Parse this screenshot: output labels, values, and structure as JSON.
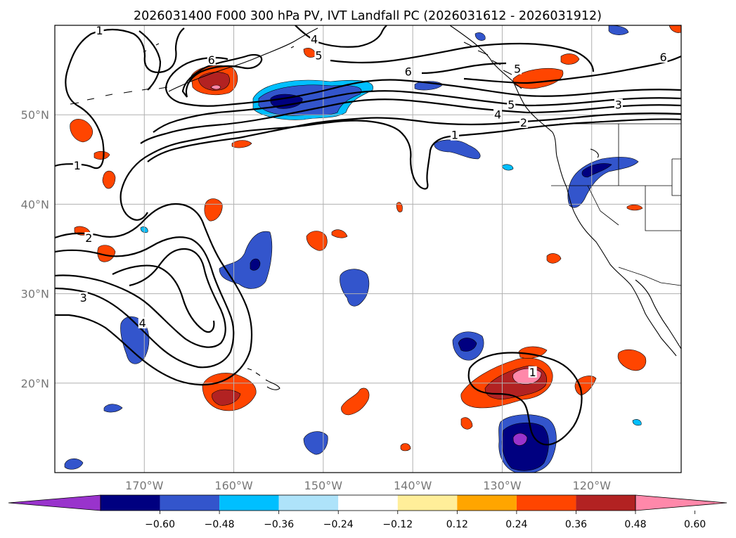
{
  "title": "2026031400 F000 300 hPa PV, IVT Landfall PC (2026031612 - 2026031912)",
  "map": {
    "lon_range": [
      -180,
      -110
    ],
    "lat_range": [
      10,
      60
    ],
    "lon_ticks": [
      {
        "lon": -170,
        "label": "170°W"
      },
      {
        "lon": -160,
        "label": "160°W"
      },
      {
        "lon": -150,
        "label": "150°W"
      },
      {
        "lon": -140,
        "label": "140°W"
      },
      {
        "lon": -130,
        "label": "130°W"
      },
      {
        "lon": -120,
        "label": "120°W"
      }
    ],
    "lat_ticks": [
      {
        "lat": 20,
        "label": "20°N"
      },
      {
        "lat": 30,
        "label": "30°N"
      },
      {
        "lat": 40,
        "label": "40°N"
      },
      {
        "lat": 50,
        "label": "50°N"
      }
    ],
    "grid": true,
    "contour_labels": [
      {
        "lon": -175,
        "lat": 59.3,
        "text": "1"
      },
      {
        "lon": -151,
        "lat": 58.3,
        "text": "4"
      },
      {
        "lon": -150.5,
        "lat": 56.5,
        "text": "5"
      },
      {
        "lon": -162.5,
        "lat": 56.0,
        "text": "6"
      },
      {
        "lon": -140.5,
        "lat": 54.7,
        "text": "6"
      },
      {
        "lon": -128.3,
        "lat": 55.0,
        "text": "5"
      },
      {
        "lon": -112,
        "lat": 56.3,
        "text": "6"
      },
      {
        "lon": -117,
        "lat": 51.0,
        "text": "3"
      },
      {
        "lon": -129,
        "lat": 51.0,
        "text": "5"
      },
      {
        "lon": -130.5,
        "lat": 49.9,
        "text": "4"
      },
      {
        "lon": -127.6,
        "lat": 49.0,
        "text": "2"
      },
      {
        "lon": -135.3,
        "lat": 47.6,
        "text": "1"
      },
      {
        "lon": -177.5,
        "lat": 44.2,
        "text": "1"
      },
      {
        "lon": -176.2,
        "lat": 36.1,
        "text": "2"
      },
      {
        "lon": -176.8,
        "lat": 29.4,
        "text": "3"
      },
      {
        "lon": -170.2,
        "lat": 26.6,
        "text": "4"
      },
      {
        "lon": -126.6,
        "lat": 21.1,
        "text": "1"
      }
    ]
  },
  "colorbar": {
    "levels": [
      -0.72,
      -0.6,
      -0.48,
      -0.36,
      -0.24,
      -0.12,
      0.12,
      0.24,
      0.36,
      0.48,
      0.6,
      0.72
    ],
    "colors": [
      "#9933cc",
      "#000080",
      "#3355cc",
      "#00bfff",
      "#aee3fa",
      "#ffffff",
      "#ffee99",
      "#ffa500",
      "#ff4500",
      "#b22222",
      "#ff88aa"
    ],
    "tick_labels": [
      "−0.60",
      "−0.48",
      "−0.36",
      "−0.24",
      "−0.12",
      "0.12",
      "0.24",
      "0.36",
      "0.48",
      "0.60"
    ],
    "extend": "both"
  }
}
